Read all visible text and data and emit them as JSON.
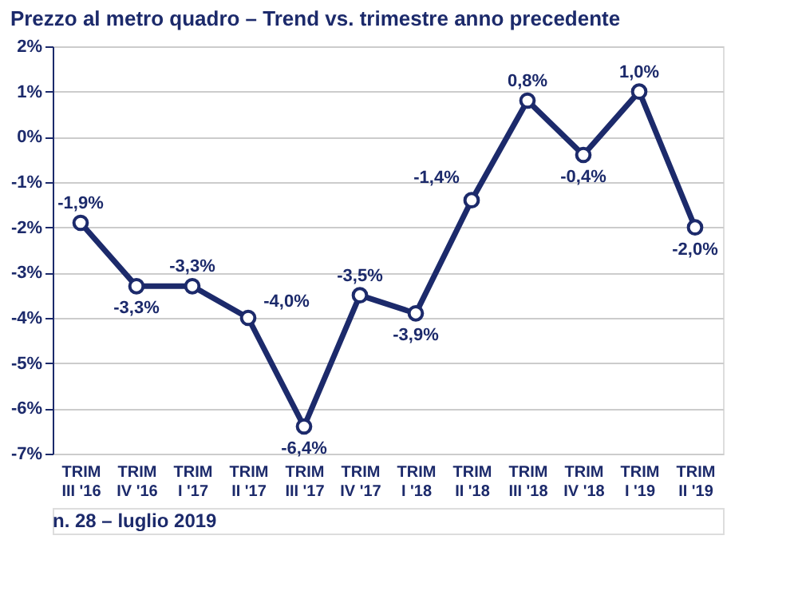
{
  "chart_data": {
    "type": "line",
    "title": "Prezzo al metro quadro – Trend vs. trimestre anno precedente",
    "categories": [
      "TRIM\nIII '16",
      "TRIM\nIV '16",
      "TRIM\nI '17",
      "TRIM\nII '17",
      "TRIM\nIII '17",
      "TRIM\nIV '17",
      "TRIM\nI '18",
      "TRIM\nII '18",
      "TRIM\nIII '18",
      "TRIM\nIV '18",
      "TRIM\nI '19",
      "TRIM\nII '19"
    ],
    "series": [
      {
        "color": "#1c2a6b",
        "values": [
          -1.9,
          -3.3,
          -3.3,
          -4.0,
          -6.4,
          -3.5,
          -3.9,
          -1.4,
          0.8,
          -0.4,
          1.0,
          -2.0
        ],
        "value_labels": [
          "-1,9%",
          "-3,3%",
          "-3,3%",
          "-4,0%",
          "-6,4%",
          "-3,5%",
          "-3,9%",
          "-1,4%",
          "0,8%",
          "-0,4%",
          "1,0%",
          "-2,0%"
        ]
      }
    ],
    "ylim": [
      -7,
      2
    ],
    "yticks": [
      {
        "value": 2,
        "label": "2%"
      },
      {
        "value": 1,
        "label": "1%"
      },
      {
        "value": 0,
        "label": "0%"
      },
      {
        "value": -1,
        "label": "-1%"
      },
      {
        "value": -2,
        "label": "-2%"
      },
      {
        "value": -3,
        "label": "-3%"
      },
      {
        "value": -4,
        "label": "-4%"
      },
      {
        "value": -5,
        "label": "-5%"
      },
      {
        "value": -6,
        "label": "-6%"
      },
      {
        "value": -7,
        "label": "-7%"
      }
    ],
    "grid": "y",
    "marker": "circle",
    "line_style": "solid",
    "annotations": [
      "n. 28 – luglio 2019"
    ]
  }
}
